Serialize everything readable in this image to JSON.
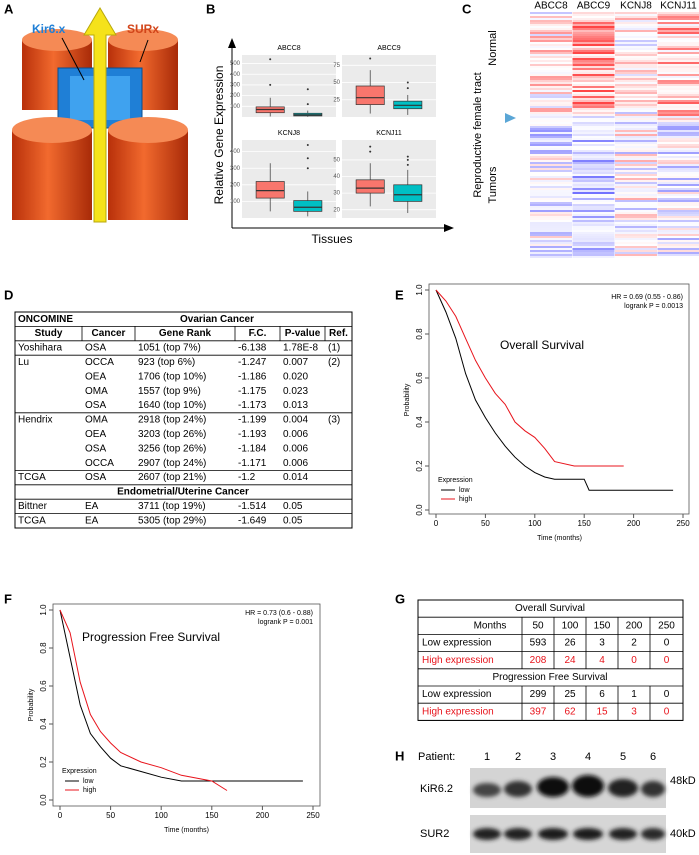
{
  "panel_labels": [
    "A",
    "B",
    "C",
    "D",
    "E",
    "F",
    "G",
    "H"
  ],
  "diagram": {
    "channel": "Kir6.x",
    "subunit": "SURx"
  },
  "expression": {
    "ylabel": "Relative  Gene  Expression",
    "xlabel": "Tissues"
  },
  "heatmap": {
    "genes": [
      "ABCC8",
      "ABCC9",
      "KCNJ8",
      "KCNJ11"
    ],
    "group": "Reproductive  female tract",
    "normal": "Normal",
    "tumors": "Tumors"
  },
  "oncomine": {
    "title": "ONCOMINE",
    "columns": [
      "Study",
      "Cancer",
      "Gene Rank",
      "F.C.",
      "P-value",
      "Ref."
    ],
    "sections": [
      {
        "title": "Ovarian Cancer",
        "rows": [
          [
            "Yoshihara",
            "OSA",
            "1051 (top 7%)",
            "-6.138",
            "1.78E-8",
            "(1)"
          ],
          [
            "Lu",
            "OCCA",
            "923 (top 6%)",
            "-1.247",
            "0.007",
            "(2)"
          ],
          [
            null,
            "OEA",
            "1706 (top 10%)",
            "-1.186",
            "0.020",
            null
          ],
          [
            null,
            "OMA",
            "1557 (top 9%)",
            "-1.175",
            "0.023",
            null
          ],
          [
            null,
            "OSA",
            "1640 (top 10%)",
            "-1.173",
            "0.013",
            null
          ],
          [
            "Hendrix",
            "OMA",
            "2918 (top 24%)",
            "-1.199",
            "0.004",
            "(3)"
          ],
          [
            null,
            "OEA",
            "3203 (top 26%)",
            "-1.193",
            "0.006",
            null
          ],
          [
            null,
            "OSA",
            "3256 (top 26%)",
            "-1.184",
            "0.006",
            null
          ],
          [
            null,
            "OCCA",
            "2907 (top 24%)",
            "-1.171",
            "0.006",
            null
          ],
          [
            "TCGA",
            "OSA",
            "2607 (top 21%)",
            "-1.2",
            "0.014",
            null
          ]
        ]
      },
      {
        "title": "Endometrial/Uterine Cancer",
        "rows": [
          [
            "Bittner",
            "EA",
            "3711 (top 19%)",
            "-1.514",
            "0.05",
            null
          ],
          [
            "TCGA",
            "EA",
            "5305 (top 29%)",
            "-1.649",
            "0.05",
            null
          ]
        ]
      }
    ]
  },
  "survival_table": {
    "header": [
      "Months",
      "50",
      "100",
      "150",
      "200",
      "250"
    ],
    "sections": [
      {
        "title": "Overall Survival",
        "rows": [
          {
            "label": "Low expression",
            "color": "#000000",
            "cells": [
              "593",
              "26",
              "3",
              "2",
              "0"
            ]
          },
          {
            "label": "High expression",
            "color": "#e8141c",
            "cells": [
              "208",
              "24",
              "4",
              "0",
              "0"
            ]
          }
        ]
      },
      {
        "title": "Progression Free Survival",
        "rows": [
          {
            "label": "Low expression",
            "color": "#000000",
            "cells": [
              "299",
              "25",
              "6",
              "1",
              "0"
            ]
          },
          {
            "label": "High expression",
            "color": "#e8141c",
            "cells": [
              "397",
              "62",
              "15",
              "3",
              "0"
            ]
          }
        ]
      }
    ]
  },
  "blot": {
    "patient_label": "Patient:",
    "lanes": [
      "1",
      "2",
      "3",
      "4",
      "5",
      "6"
    ],
    "proteins": [
      {
        "name": "KiR6.2",
        "size": "48kD"
      },
      {
        "name": "SUR2",
        "size": "40kD"
      }
    ]
  },
  "chart_data": [
    {
      "type": "box",
      "title": "ABCC8",
      "ylim": [
        0,
        580
      ],
      "yticks": [
        100,
        200,
        300,
        400,
        500
      ],
      "boxes": [
        {
          "color": "#f8766d",
          "whislo": 5,
          "q1": 40,
          "median": 70,
          "q3": 95,
          "whishi": 180,
          "outliers": [
            300,
            540
          ]
        },
        {
          "color": "#00bfc4",
          "whislo": 2,
          "q1": 10,
          "median": 20,
          "q3": 35,
          "whishi": 60,
          "outliers": [
            120,
            260
          ]
        }
      ]
    },
    {
      "type": "box",
      "title": "ABCC9",
      "ylim": [
        0,
        90
      ],
      "yticks": [
        25,
        50,
        75
      ],
      "boxes": [
        {
          "color": "#f8766d",
          "whislo": 5,
          "q1": 18,
          "median": 28,
          "q3": 45,
          "whishi": 68,
          "outliers": [
            85
          ]
        },
        {
          "color": "#00bfc4",
          "whislo": 3,
          "q1": 12,
          "median": 17,
          "q3": 23,
          "whishi": 32,
          "outliers": [
            42,
            50
          ]
        }
      ]
    },
    {
      "type": "box",
      "title": "KCNJ8",
      "ylim": [
        0,
        470
      ],
      "yticks": [
        100,
        200,
        300,
        400
      ],
      "boxes": [
        {
          "color": "#f8766d",
          "whislo": 40,
          "q1": 120,
          "median": 165,
          "q3": 220,
          "whishi": 330,
          "outliers": []
        },
        {
          "color": "#00bfc4",
          "whislo": 10,
          "q1": 40,
          "median": 65,
          "q3": 105,
          "whishi": 160,
          "outliers": [
            300,
            360,
            440
          ]
        }
      ]
    },
    {
      "type": "box",
      "title": "KCNJ11",
      "ylim": [
        15,
        62
      ],
      "yticks": [
        20,
        30,
        40,
        50
      ],
      "boxes": [
        {
          "color": "#f8766d",
          "whislo": 22,
          "q1": 30,
          "median": 33,
          "q3": 38,
          "whishi": 48,
          "outliers": [
            55,
            58
          ]
        },
        {
          "color": "#00bfc4",
          "whislo": 18,
          "q1": 25,
          "median": 29,
          "q3": 35,
          "whishi": 44,
          "outliers": [
            47,
            50,
            52
          ]
        }
      ]
    },
    {
      "type": "line",
      "title": "Overall Survival",
      "annotations": [
        "HR = 0.69 (0.55 - 0.86)",
        "logrank P = 0.0013"
      ],
      "xlabel": "Time (months)",
      "ylabel": "Probability",
      "xlim": [
        0,
        250
      ],
      "xticks": [
        0,
        50,
        100,
        150,
        200,
        250
      ],
      "ylim": [
        0,
        1
      ],
      "yticks": [
        {
          "value": 0,
          "label": "0.0"
        },
        0.2,
        0.4,
        0.6,
        0.8,
        {
          "value": 1,
          "label": "1.0"
        }
      ],
      "legend_title": "Expression",
      "legend": "lower left",
      "series": [
        {
          "name": "low",
          "color": "#000000",
          "x": [
            0,
            10,
            20,
            30,
            40,
            50,
            60,
            70,
            80,
            90,
            100,
            110,
            120,
            150,
            155,
            240
          ],
          "values": [
            1,
            0.9,
            0.78,
            0.62,
            0.5,
            0.42,
            0.35,
            0.29,
            0.24,
            0.2,
            0.17,
            0.15,
            0.14,
            0.14,
            0.09,
            0.09
          ]
        },
        {
          "name": "high",
          "color": "#e8141c",
          "x": [
            0,
            10,
            20,
            30,
            40,
            50,
            60,
            70,
            80,
            90,
            100,
            110,
            120,
            140,
            190
          ],
          "values": [
            1,
            0.95,
            0.88,
            0.78,
            0.68,
            0.6,
            0.53,
            0.48,
            0.4,
            0.36,
            0.33,
            0.28,
            0.22,
            0.2,
            0.2
          ]
        }
      ]
    },
    {
      "type": "line",
      "title": "Progression Free Survival",
      "annotations": [
        "HR = 0.73 (0.6 - 0.88)",
        "logrank P = 0.001"
      ],
      "xlabel": "Time (months)",
      "ylabel": "Probability",
      "xlim": [
        0,
        250
      ],
      "xticks": [
        0,
        50,
        100,
        150,
        200,
        250
      ],
      "ylim": [
        0,
        1
      ],
      "yticks": [
        {
          "value": 0,
          "label": "0.0"
        },
        0.2,
        0.4,
        0.6,
        0.8,
        {
          "value": 1,
          "label": "1.0"
        }
      ],
      "legend_title": "Expression",
      "legend": "lower left",
      "series": [
        {
          "name": "low",
          "color": "#000000",
          "x": [
            0,
            10,
            20,
            30,
            40,
            50,
            60,
            80,
            100,
            120,
            150,
            240
          ],
          "values": [
            1,
            0.75,
            0.5,
            0.35,
            0.28,
            0.22,
            0.18,
            0.15,
            0.12,
            0.1,
            0.1,
            0.1
          ]
        },
        {
          "name": "high",
          "color": "#e8141c",
          "x": [
            0,
            10,
            20,
            30,
            40,
            50,
            60,
            80,
            100,
            120,
            150,
            165
          ],
          "values": [
            1,
            0.88,
            0.62,
            0.45,
            0.36,
            0.3,
            0.25,
            0.2,
            0.17,
            0.13,
            0.1,
            0.05
          ]
        }
      ]
    }
  ]
}
